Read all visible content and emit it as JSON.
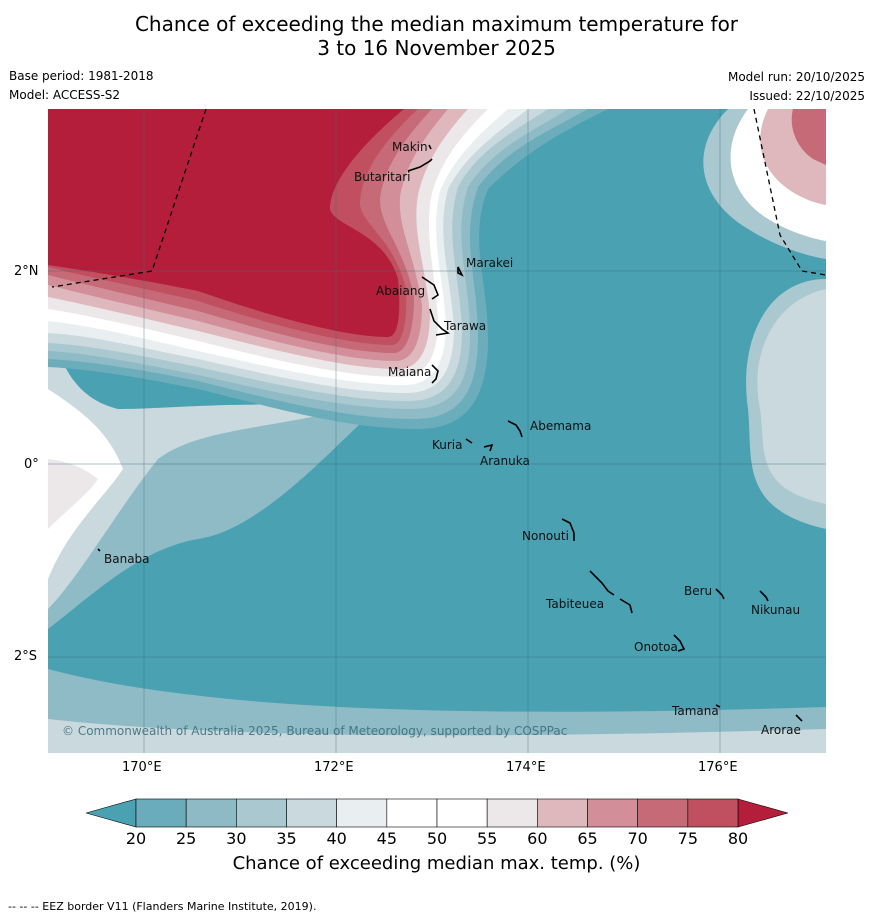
{
  "title": {
    "line1": "Chance of exceeding the median maximum temperature for",
    "line2": "3 to 16 November 2025"
  },
  "meta": {
    "base_period": "Base period: 1981-2018",
    "model": "Model: ACCESS-S2",
    "model_run": "Model run: 20/10/2025",
    "issued": "Issued: 22/10/2025"
  },
  "map": {
    "lat_labels": [
      "2°N",
      "0°",
      "2°S"
    ],
    "lon_labels": [
      "170°E",
      "172°E",
      "174°E",
      "176°E"
    ],
    "places": [
      "Makin",
      "Butaritari",
      "Marakei",
      "Abaiang",
      "Tarawa",
      "Maiana",
      "Abemama",
      "Kuria",
      "Aranuka",
      "Nonouti",
      "Banaba",
      "Beru",
      "Nikunau",
      "Tabiteuea",
      "Onotoa",
      "Tamana",
      "Arorae"
    ],
    "copyright": "© Commonwealth of Australia 2025, Bureau of Meteorology, supported by COSPPac",
    "colors": {
      "teal_dark": "#49a1b2",
      "teal": "#6badbb",
      "teal_mid": "#8ebbc6",
      "teal_light": "#aac8d0",
      "grey_blue": "#c9d9de",
      "pale": "#e9eef0",
      "white": "#ffffff",
      "pink_pale": "#ece8ea",
      "pink_light": "#dfb8be",
      "pink": "#d38f99",
      "red_light": "#c66a77",
      "red": "#c0505f",
      "red_dark": "#b51e3a"
    }
  },
  "colorbar": {
    "ticks": [
      "20",
      "25",
      "30",
      "35",
      "40",
      "45",
      "50",
      "55",
      "60",
      "65",
      "70",
      "75",
      "80"
    ],
    "colors": [
      "#6aacbb",
      "#8dbac5",
      "#aac8d0",
      "#c9d9de",
      "#e9eef0",
      "#ffffff",
      "#ffffff",
      "#ece8ea",
      "#dfb8be",
      "#d38f99",
      "#c66a77",
      "#c0505f"
    ],
    "low_color": "#49a1b2",
    "high_color": "#b51e3a",
    "label": "Chance of exceeding median max. temp. (%)"
  },
  "footer": "--  --  -- EEZ border V11 (Flanders Marine Institute, 2019)."
}
